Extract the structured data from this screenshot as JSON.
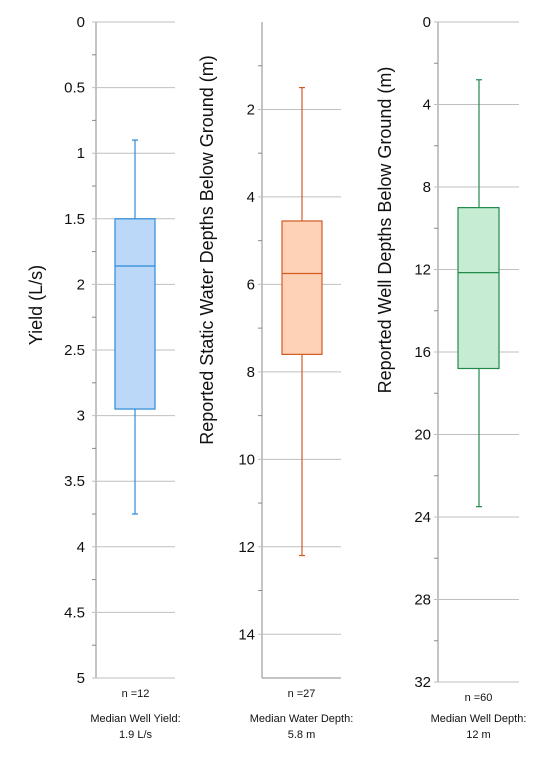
{
  "chart_data": [
    {
      "type": "box",
      "ylabel": "Yield (L/s)",
      "ylim": [
        0,
        5
      ],
      "inverted_y": true,
      "tick_labels": [
        "0",
        "0.5",
        "1",
        "1.5",
        "2",
        "2.5",
        "3",
        "3.5",
        "4",
        "4.5",
        "5"
      ],
      "tick_values": [
        0,
        0.5,
        1,
        1.5,
        2,
        2.5,
        3,
        3.5,
        4,
        4.5,
        5
      ],
      "minor_tick_values": [
        0.25,
        0.75,
        1.25,
        1.75,
        2.25,
        2.75,
        3.25,
        3.75,
        4.25,
        4.75
      ],
      "box": {
        "whisker_low": 0.9,
        "q1": 1.5,
        "median": 1.86,
        "q3": 2.95,
        "whisker_high": 3.75
      },
      "count_label": "n =12",
      "summary": [
        "Median Well Yield:",
        "1.9 L/s"
      ],
      "colors": {
        "fill": "#bcd8f9",
        "stroke": "#2d8ad8"
      }
    },
    {
      "type": "box",
      "ylabel": "Reported Static Water Depths Below Ground (m)",
      "ylim": [
        0,
        15
      ],
      "inverted_y": true,
      "tick_labels": [
        "2",
        "4",
        "6",
        "8",
        "10",
        "12",
        "14"
      ],
      "tick_values": [
        2,
        4,
        6,
        8,
        10,
        12,
        14
      ],
      "minor_tick_values": [
        1,
        3,
        5,
        7,
        9,
        11,
        13
      ],
      "box": {
        "whisker_low": 1.5,
        "q1": 4.55,
        "median": 5.75,
        "q3": 7.6,
        "whisker_high": 12.2
      },
      "count_label": "n =27",
      "summary": [
        "Median Water Depth:",
        "5.8 m"
      ],
      "colors": {
        "fill": "#fdd2b6",
        "stroke": "#d45a23"
      }
    },
    {
      "type": "box",
      "ylabel": "Reported Well Depths Below Ground (m)",
      "ylim": [
        0,
        32
      ],
      "inverted_y": true,
      "tick_labels": [
        "0",
        "4",
        "8",
        "12",
        "16",
        "20",
        "24",
        "28",
        "32"
      ],
      "tick_values": [
        0,
        4,
        8,
        12,
        16,
        20,
        24,
        28,
        32
      ],
      "minor_tick_values": [
        2,
        6,
        10,
        14,
        18,
        22,
        26,
        30
      ],
      "box": {
        "whisker_low": 2.8,
        "q1": 9.0,
        "median": 12.15,
        "q3": 16.8,
        "whisker_high": 23.5
      },
      "count_label": "n =60",
      "summary": [
        "Median Well Depth:",
        "12 m"
      ],
      "colors": {
        "fill": "#c6ecd3",
        "stroke": "#1f8a4a"
      }
    }
  ]
}
